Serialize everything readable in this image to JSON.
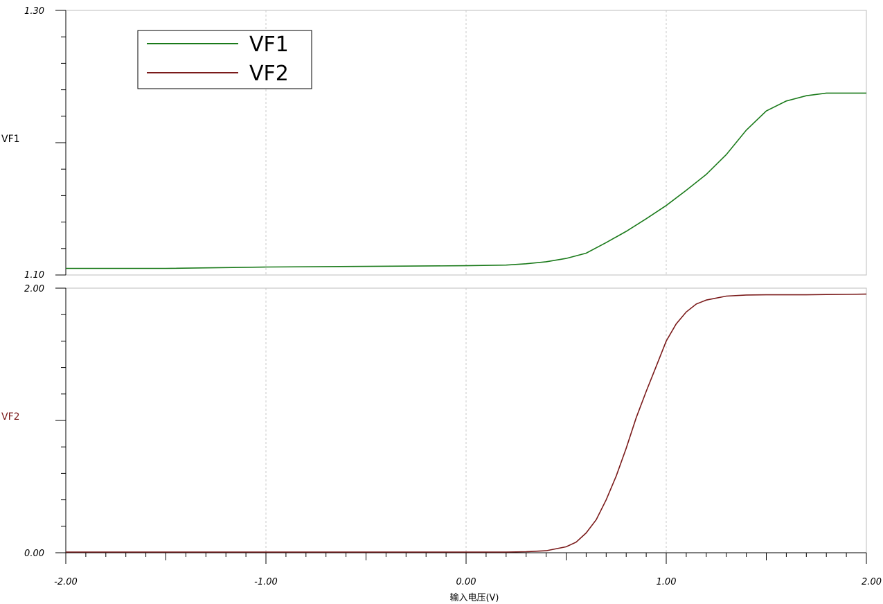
{
  "chart_data": [
    {
      "type": "line",
      "series": [
        {
          "name": "VF1",
          "color": "#1a7a1a",
          "x": [
            -2.0,
            -1.5,
            -1.0,
            -0.5,
            0.0,
            0.2,
            0.3,
            0.4,
            0.5,
            0.6,
            0.7,
            0.8,
            0.9,
            1.0,
            1.1,
            1.2,
            1.3,
            1.4,
            1.5,
            1.6,
            1.7,
            1.8,
            1.9,
            2.0
          ],
          "y": [
            1.105,
            1.105,
            1.106,
            1.1065,
            1.107,
            1.1075,
            1.1085,
            1.11,
            1.1125,
            1.1165,
            1.1245,
            1.133,
            1.1425,
            1.1525,
            1.164,
            1.176,
            1.191,
            1.2095,
            1.224,
            1.2315,
            1.2355,
            1.2375,
            1.2375,
            1.2375
          ]
        }
      ],
      "ylabel": "VF1",
      "ylim": [
        1.1,
        1.3
      ],
      "y_tick_labels": [
        "1.30",
        "1.10"
      ],
      "xlim": [
        -2.0,
        2.0
      ],
      "grid": "vertical dashed",
      "legend": {
        "position": "top-left",
        "entries": [
          "VF1",
          "VF2"
        ]
      }
    },
    {
      "type": "line",
      "series": [
        {
          "name": "VF2",
          "color": "#7a1a1a",
          "x": [
            -2.0,
            -1.0,
            0.0,
            0.2,
            0.3,
            0.4,
            0.5,
            0.55,
            0.6,
            0.65,
            0.7,
            0.75,
            0.8,
            0.85,
            0.9,
            0.95,
            1.0,
            1.05,
            1.1,
            1.15,
            1.2,
            1.3,
            1.4,
            1.5,
            1.6,
            1.7,
            1.8,
            1.9,
            2.0
          ],
          "y": [
            0.005,
            0.005,
            0.005,
            0.005,
            0.008,
            0.015,
            0.045,
            0.08,
            0.15,
            0.25,
            0.4,
            0.58,
            0.79,
            1.02,
            1.22,
            1.41,
            1.6,
            1.73,
            1.82,
            1.88,
            1.91,
            1.94,
            1.948,
            1.95,
            1.95,
            1.95,
            1.952,
            1.953,
            1.955
          ]
        }
      ],
      "ylabel": "VF2",
      "ylim": [
        0.0,
        2.0
      ],
      "y_tick_labels": [
        "2.00",
        "0.00"
      ],
      "xlim": [
        -2.0,
        2.0
      ],
      "x_tick_labels": [
        "-2.00",
        "-1.00",
        "0.00",
        "1.00",
        "2.00"
      ],
      "xlabel": "输入电压(V)",
      "grid": "vertical dashed"
    }
  ]
}
